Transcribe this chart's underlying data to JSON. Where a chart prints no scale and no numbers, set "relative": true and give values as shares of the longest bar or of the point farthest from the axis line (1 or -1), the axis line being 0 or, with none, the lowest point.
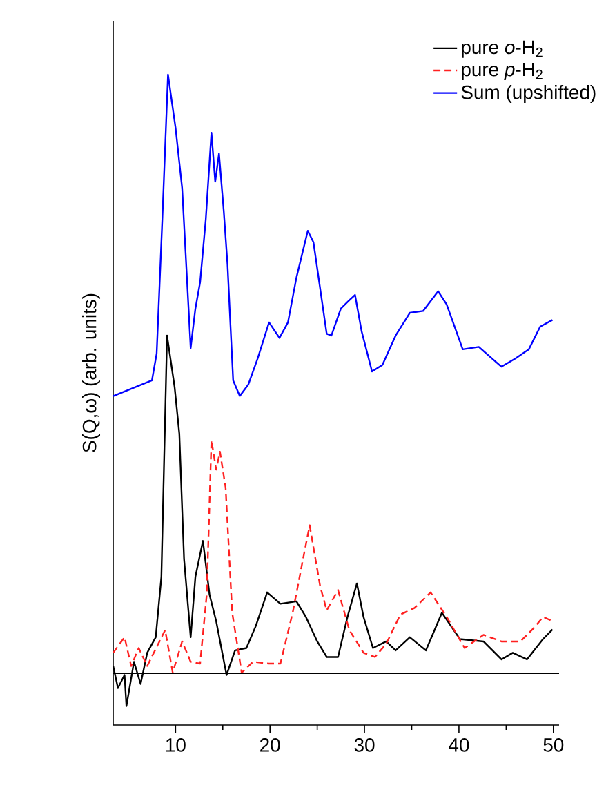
{
  "chart_data": {
    "type": "line",
    "relative": true,
    "ylabel": "S(Q,ω) (arb. units)",
    "xlim": [
      3.4,
      50.6
    ],
    "xticks": [
      10,
      20,
      30,
      40,
      50
    ],
    "legend": "top right",
    "grid": false,
    "ref_lines": [
      {
        "axis": "y",
        "value": 0,
        "color": "#000000"
      }
    ],
    "series": [
      {
        "name": "pure *o*-H$_{2}$",
        "color": "#000000",
        "line_style": "solid",
        "x": [
          3.4,
          3.9,
          4.6,
          4.8,
          5.6,
          6.3,
          7.0,
          7.9,
          8.5,
          9.1,
          9.9,
          10.4,
          10.9,
          11.6,
          12.1,
          12.9,
          13.6,
          14.3,
          15.4,
          16.3,
          17.5,
          18.5,
          19.7,
          21.1,
          22.8,
          23.8,
          25.0,
          26.0,
          27.2,
          28.2,
          29.2,
          29.9,
          30.9,
          32.3,
          33.3,
          34.8,
          36.5,
          38.2,
          40.1,
          42.6,
          44.5,
          45.7,
          47.2,
          48.9,
          49.9
        ],
        "values": [
          0.012,
          -0.025,
          -0.003,
          -0.055,
          0.019,
          -0.018,
          0.034,
          0.06,
          0.161,
          0.564,
          0.478,
          0.4,
          0.191,
          0.06,
          0.161,
          0.221,
          0.131,
          0.087,
          -0.003,
          0.038,
          0.042,
          0.079,
          0.135,
          0.116,
          0.12,
          0.094,
          0.053,
          0.027,
          0.027,
          0.094,
          0.15,
          0.094,
          0.042,
          0.053,
          0.038,
          0.06,
          0.038,
          0.101,
          0.057,
          0.053,
          0.023,
          0.034,
          0.023,
          0.057,
          0.073
        ]
      },
      {
        "name": "pure *p*-H$_{2}$",
        "color": "#ff2020",
        "line_style": "dashed",
        "x": [
          3.4,
          4.6,
          5.3,
          6.1,
          7.0,
          8.9,
          9.7,
          10.7,
          11.6,
          12.6,
          13.3,
          13.8,
          14.3,
          14.7,
          15.3,
          16.0,
          17.0,
          18.2,
          19.9,
          21.1,
          22.4,
          23.5,
          24.2,
          25.3,
          26.0,
          27.2,
          28.4,
          29.9,
          31.1,
          32.3,
          33.8,
          35.3,
          37.0,
          38.7,
          40.6,
          42.6,
          44.5,
          46.5,
          47.9,
          48.9,
          49.9
        ],
        "values": [
          0.034,
          0.06,
          0.012,
          0.042,
          0.012,
          0.072,
          0.001,
          0.053,
          0.019,
          0.016,
          0.131,
          0.389,
          0.34,
          0.37,
          0.31,
          0.101,
          0.001,
          0.019,
          0.016,
          0.016,
          0.101,
          0.191,
          0.247,
          0.146,
          0.105,
          0.139,
          0.072,
          0.034,
          0.027,
          0.049,
          0.098,
          0.109,
          0.135,
          0.094,
          0.042,
          0.064,
          0.053,
          0.053,
          0.075,
          0.094,
          0.087
        ]
      },
      {
        "name": "Sum (upshifted)",
        "color": "#0000ff",
        "line_style": "solid",
        "x": [
          3.4,
          7.5,
          8.0,
          8.6,
          9.2,
          10.0,
          10.7,
          11.6,
          12.1,
          12.6,
          13.2,
          13.8,
          14.2,
          14.6,
          15.1,
          15.5,
          16.1,
          16.8,
          17.7,
          18.7,
          19.9,
          21.0,
          21.9,
          22.8,
          24.0,
          24.6,
          26.0,
          26.5,
          27.5,
          28.2,
          29.0,
          29.7,
          30.8,
          31.9,
          33.3,
          34.8,
          36.2,
          37.8,
          38.7,
          40.4,
          42.1,
          44.5,
          46.0,
          47.4,
          48.6,
          49.9
        ],
        "values": [
          0.463,
          0.489,
          0.534,
          0.758,
          1.0,
          0.911,
          0.81,
          0.543,
          0.609,
          0.653,
          0.758,
          0.903,
          0.821,
          0.868,
          0.773,
          0.683,
          0.489,
          0.463,
          0.482,
          0.526,
          0.586,
          0.56,
          0.586,
          0.661,
          0.739,
          0.72,
          0.567,
          0.564,
          0.609,
          0.62,
          0.632,
          0.571,
          0.504,
          0.515,
          0.564,
          0.602,
          0.605,
          0.638,
          0.616,
          0.541,
          0.545,
          0.512,
          0.526,
          0.541,
          0.579,
          0.59
        ]
      }
    ]
  }
}
